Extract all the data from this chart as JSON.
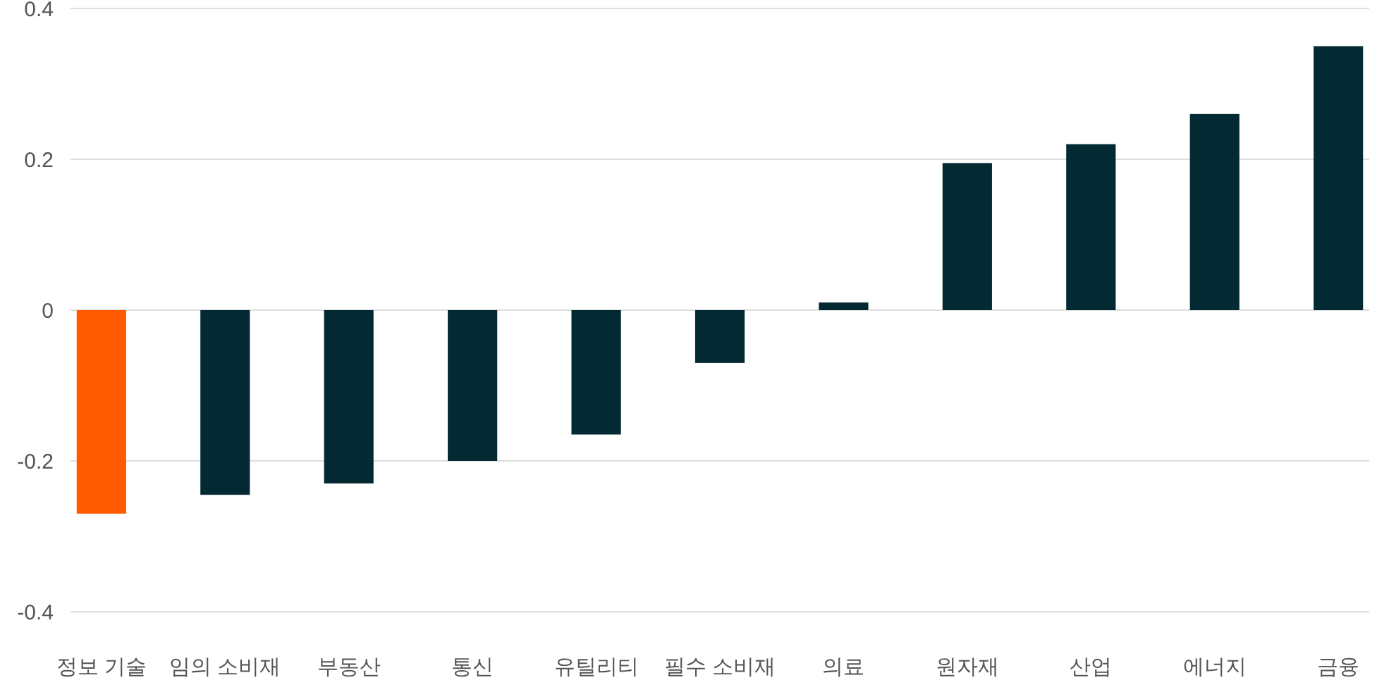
{
  "chart_data": {
    "type": "bar",
    "categories": [
      "정보 기술",
      "임의 소비재",
      "부동산",
      "통신",
      "유틸리티",
      "필수 소비재",
      "의료",
      "원자재",
      "산업",
      "에너지",
      "금융"
    ],
    "values": [
      -0.27,
      -0.245,
      -0.23,
      -0.2,
      -0.165,
      -0.07,
      0.01,
      0.195,
      0.22,
      0.26,
      0.35
    ],
    "colors": [
      "#ff5a00",
      "#032a33",
      "#032a33",
      "#032a33",
      "#032a33",
      "#032a33",
      "#032a33",
      "#032a33",
      "#032a33",
      "#032a33",
      "#032a33"
    ],
    "ylim": [
      -0.4,
      0.4
    ],
    "yticks": [
      -0.4,
      -0.2,
      0,
      0.2,
      0.4
    ],
    "grid": "y"
  }
}
